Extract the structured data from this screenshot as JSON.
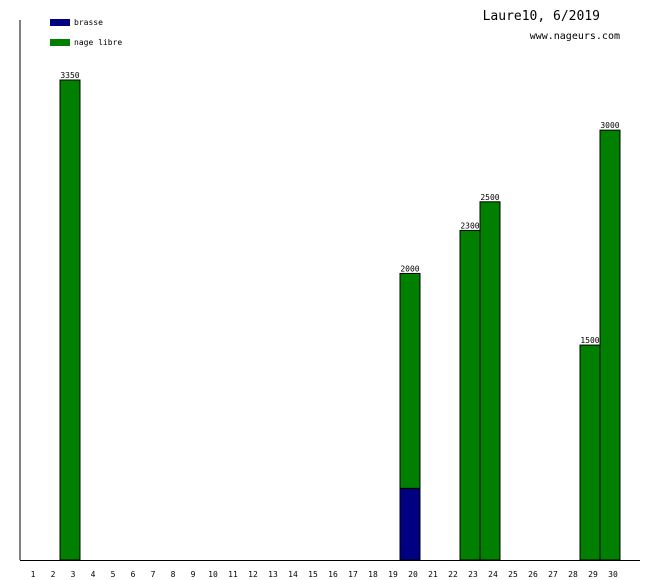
{
  "header": {
    "title": "Laure10, 6/2019",
    "subtitle": "www.nageurs.com"
  },
  "chart_data": {
    "type": "bar",
    "stacked": true,
    "categories": [
      "1",
      "2",
      "3",
      "4",
      "5",
      "6",
      "7",
      "8",
      "9",
      "10",
      "11",
      "12",
      "13",
      "14",
      "15",
      "16",
      "17",
      "18",
      "19",
      "20",
      "21",
      "22",
      "23",
      "24",
      "25",
      "26",
      "27",
      "28",
      "29",
      "30"
    ],
    "ylim": [
      0,
      3350
    ],
    "legend_position": "top-left",
    "grid": false,
    "series": [
      {
        "name": "brasse",
        "color": "#000080",
        "values": [
          0,
          0,
          0,
          0,
          0,
          0,
          0,
          0,
          0,
          0,
          0,
          0,
          0,
          0,
          0,
          0,
          0,
          0,
          500,
          0,
          0,
          0,
          0,
          0,
          0,
          0,
          0,
          0,
          0,
          0
        ]
      },
      {
        "name": "nage libre",
        "color": "#007f00",
        "values": [
          0,
          3350,
          0,
          0,
          0,
          0,
          0,
          0,
          0,
          0,
          0,
          0,
          0,
          0,
          0,
          0,
          0,
          0,
          1500,
          0,
          0,
          2300,
          2500,
          0,
          0,
          0,
          0,
          1500,
          3000,
          0
        ]
      }
    ],
    "totals_labels": [
      {
        "category": "2",
        "label": "3350"
      },
      {
        "category": "19",
        "label": "2000"
      },
      {
        "category": "22",
        "label": "2300"
      },
      {
        "category": "23",
        "label": "2500"
      },
      {
        "category": "28",
        "label": "1500"
      },
      {
        "category": "29",
        "label": "3000"
      }
    ]
  }
}
